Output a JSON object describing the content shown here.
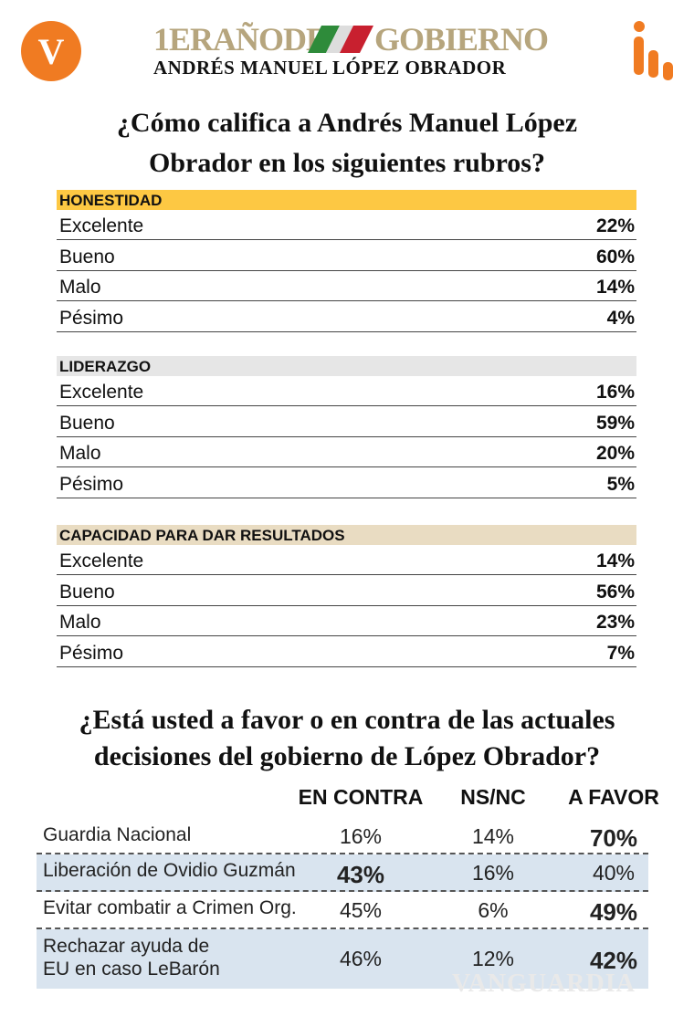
{
  "header": {
    "logo": "V",
    "title_left": "1ERAÑODE",
    "title_right": "GOBIERNO",
    "subtitle": "ANDRÉS MANUEL LÓPEZ OBRADOR"
  },
  "ratings": {
    "question": [
      "¿Cómo califica a Andrés Manuel López",
      "Obrador en los siguientes rubros?"
    ],
    "groups": [
      {
        "heading": "HONESTIDAD",
        "color": "#fdc843",
        "rows": [
          [
            "Excelente",
            "22%"
          ],
          [
            "Bueno",
            "60%"
          ],
          [
            "Malo",
            "14%"
          ],
          [
            "Pésimo",
            "4%"
          ]
        ]
      },
      {
        "heading": "LIDERAZGO",
        "color": "#e6e6e6",
        "rows": [
          [
            "Excelente",
            "16%"
          ],
          [
            "Bueno",
            "59%"
          ],
          [
            "Malo",
            "20%"
          ],
          [
            "Pésimo",
            "5%"
          ]
        ]
      },
      {
        "heading": "CAPACIDAD PARA DAR RESULTADOS",
        "color": "#e9dcc2",
        "rows": [
          [
            "Excelente",
            "14%"
          ],
          [
            "Bueno",
            "56%"
          ],
          [
            "Malo",
            "23%"
          ],
          [
            "Pésimo",
            "7%"
          ]
        ]
      }
    ]
  },
  "decisions": {
    "question": [
      "¿Está usted a favor o en contra de las actuales",
      "decisiones del gobierno de López Obrador?"
    ],
    "columns": [
      "EN CONTRA",
      "NS/NC",
      "A FAVOR"
    ],
    "rows": [
      {
        "label": [
          "Guardia Nacional"
        ],
        "values": [
          "16%",
          "14%",
          "70%"
        ],
        "emphasis": 2
      },
      {
        "label": [
          "Liberación de Ovidio Guzmán"
        ],
        "values": [
          "43%",
          "16%",
          "40%"
        ],
        "emphasis": 0
      },
      {
        "label": [
          "Evitar combatir a Crimen Org."
        ],
        "values": [
          "45%",
          "6%",
          "49%"
        ],
        "emphasis": 2
      },
      {
        "label": [
          "Rechazar ayuda de",
          "EU en caso LeBarón"
        ],
        "values": [
          "46%",
          "12%",
          "42%"
        ],
        "emphasis": 2
      }
    ]
  },
  "watermark": "VANGUARDIA"
}
